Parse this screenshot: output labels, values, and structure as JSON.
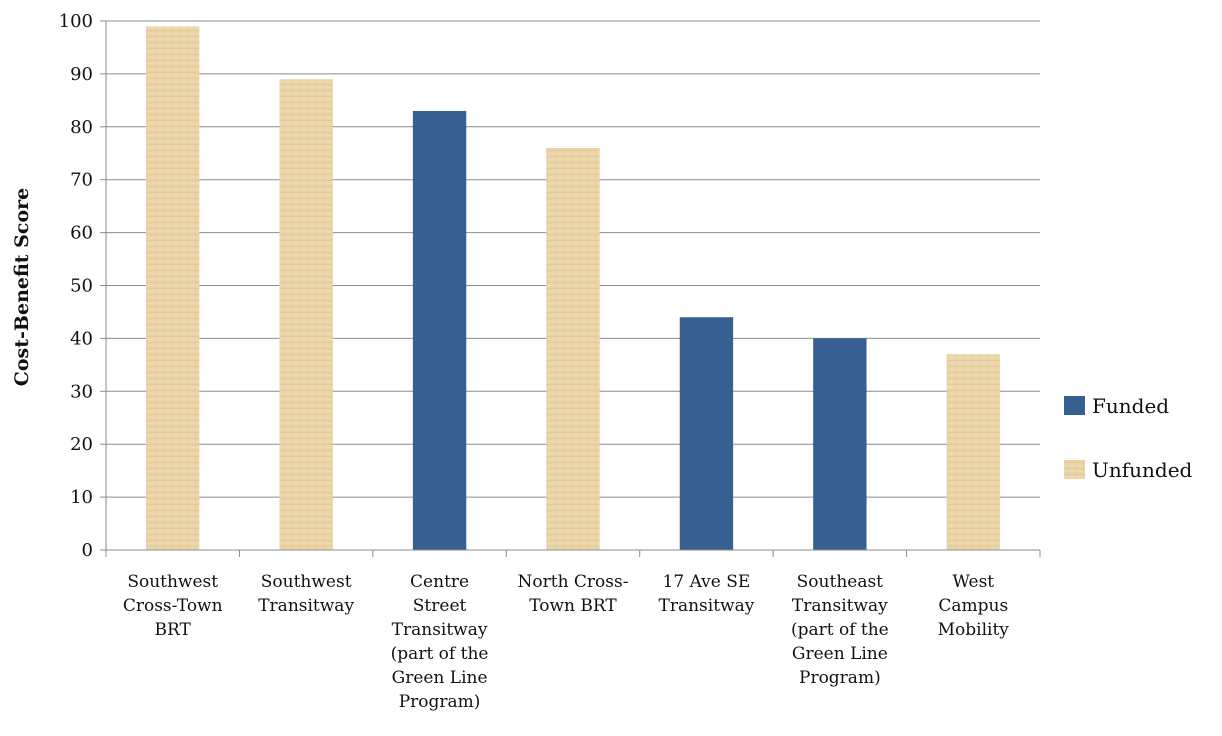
{
  "chart_data": {
    "type": "bar",
    "title": "",
    "xlabel": "",
    "ylabel": "Cost-Benefit Score",
    "ylim": [
      0,
      100
    ],
    "ytick_step": 10,
    "grid": true,
    "legend_position": "right",
    "categories": [
      [
        "Southwest",
        "Cross-Town",
        "BRT"
      ],
      [
        "Southwest",
        "Transitway"
      ],
      [
        "Centre",
        "Street",
        "Transitway",
        "(part of the",
        "Green Line",
        "Program)"
      ],
      [
        "North Cross-",
        "Town BRT"
      ],
      [
        "17 Ave SE",
        "Transitway"
      ],
      [
        "Southeast",
        "Transitway",
        "(part of the",
        "Green Line",
        "Program)"
      ],
      [
        "West",
        "Campus",
        "Mobility"
      ]
    ],
    "values": [
      99,
      89,
      83,
      76,
      44,
      40,
      37
    ],
    "status": [
      "Unfunded",
      "Unfunded",
      "Funded",
      "Unfunded",
      "Funded",
      "Funded",
      "Unfunded"
    ],
    "legend": [
      {
        "name": "Funded",
        "color": "#375f91"
      },
      {
        "name": "Unfunded",
        "color": "#e9d2a4"
      }
    ]
  }
}
